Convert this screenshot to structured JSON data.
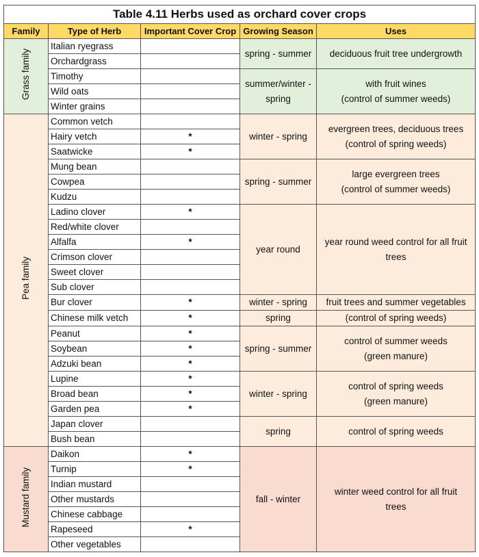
{
  "title": "Table 4.11 Herbs used as orchard cover crops",
  "header": [
    "Family",
    "Type of Herb",
    "Important Cover Crop",
    "Growing Season",
    "Uses"
  ],
  "families": [
    {
      "name": "Grass family",
      "groups": [
        {
          "season": [
            "spring - summer"
          ],
          "uses": [
            "deciduous fruit tree undergrowth"
          ],
          "herbs": [
            {
              "name": "Italian ryegrass"
            },
            {
              "name": "Orchardgrass"
            }
          ]
        },
        {
          "season": [
            "summer/winter -",
            "spring"
          ],
          "uses": [
            "with fruit wines",
            "(control of summer weeds)"
          ],
          "herbs": [
            {
              "name": "Timothy"
            },
            {
              "name": "Wild oats"
            },
            {
              "name": "Winter grains"
            }
          ]
        }
      ]
    },
    {
      "name": "Pea family",
      "groups": [
        {
          "season": [
            "winter - spring"
          ],
          "uses": [
            "evergreen trees, deciduous trees",
            "(control of spring weeds)"
          ],
          "herbs": [
            {
              "name": "Common vetch"
            },
            {
              "name": "Hairy vetch",
              "important": "*"
            },
            {
              "name": "Saatwicke",
              "important": "*"
            }
          ]
        },
        {
          "season": [
            "spring - summer"
          ],
          "uses": [
            "large evergreen trees",
            "(control of summer weeds)"
          ],
          "herbs": [
            {
              "name": "Mung bean"
            },
            {
              "name": "Cowpea"
            },
            {
              "name": "Kudzu"
            }
          ]
        },
        {
          "season": [
            "year round"
          ],
          "uses": [
            "year round weed control for all fruit",
            "trees"
          ],
          "herbs": [
            {
              "name": "Ladino clover",
              "important": "*"
            },
            {
              "name": "Red/white clover"
            },
            {
              "name": "Alfalfa",
              "important": "*"
            },
            {
              "name": "Crimson clover"
            },
            {
              "name": "Sweet clover"
            },
            {
              "name": "Sub clover"
            }
          ]
        },
        {
          "season": [
            "winter - spring"
          ],
          "uses": [
            "fruit trees and summer vegetables"
          ],
          "herbs": [
            {
              "name": "Bur clover",
              "important": "*"
            }
          ]
        },
        {
          "season": [
            "spring"
          ],
          "uses": [
            "(control of spring weeds)"
          ],
          "herbs": [
            {
              "name": "Chinese milk vetch",
              "important": "*"
            }
          ]
        },
        {
          "season": [
            "spring - summer"
          ],
          "uses": [
            "control of summer weeds",
            "(green manure)"
          ],
          "herbs": [
            {
              "name": "Peanut",
              "important": "*"
            },
            {
              "name": "Soybean",
              "important": "*"
            },
            {
              "name": "Adzuki bean",
              "important": "*"
            }
          ]
        },
        {
          "season": [
            "winter - spring"
          ],
          "uses": [
            "control of spring weeds",
            "(green manure)"
          ],
          "herbs": [
            {
              "name": "Lupine",
              "important": "*"
            },
            {
              "name": "Broad bean",
              "important": "*"
            },
            {
              "name": "Garden pea",
              "important": "*"
            }
          ]
        },
        {
          "season": [
            "spring"
          ],
          "uses": [
            "control of spring weeds"
          ],
          "herbs": [
            {
              "name": "Japan clover"
            },
            {
              "name": "Bush bean"
            }
          ]
        }
      ]
    },
    {
      "name": "Mustard family",
      "groups": [
        {
          "season": [
            "fall - winter"
          ],
          "uses": [
            "winter weed control for all fruit",
            "trees"
          ],
          "herbs": [
            {
              "name": "Daikon",
              "important": "*"
            },
            {
              "name": "Turnip",
              "important": "*"
            },
            {
              "name": "Indian mustard"
            },
            {
              "name": "Other mustards"
            },
            {
              "name": "Chinese cabbage"
            },
            {
              "name": "Rapeseed",
              "important": "*"
            },
            {
              "name": "Other vegetables"
            }
          ]
        }
      ]
    }
  ]
}
